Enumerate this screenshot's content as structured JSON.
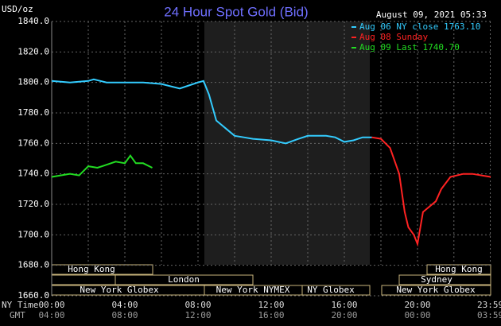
{
  "chart_data": {
    "type": "line",
    "title": "24 Hour Spot Gold (Bid)",
    "y_unit_label": "USD/oz",
    "timestamp": "August 09, 2021 05:33",
    "x_axis_label": "NY Time",
    "x2_axis_label": "GMT",
    "xlim": [
      0,
      24
    ],
    "xticks": [
      {
        "value": 0,
        "label": "00:00"
      },
      {
        "value": 4,
        "label": "04:00"
      },
      {
        "value": 8,
        "label": "08:00"
      },
      {
        "value": 12,
        "label": "12:00"
      },
      {
        "value": 16,
        "label": "16:00"
      },
      {
        "value": 20,
        "label": "20:00"
      },
      {
        "value": 23.98,
        "label": "23:59"
      }
    ],
    "x2tick_labels": [
      "04:00",
      "08:00",
      "12:00",
      "16:00",
      "20:00",
      "00:00",
      "03:59"
    ],
    "ylim": [
      1660,
      1840
    ],
    "yticks": [
      {
        "value": 1840,
        "label": "1840.0"
      },
      {
        "value": 1820,
        "label": "1820.0"
      },
      {
        "value": 1800,
        "label": "1800.0"
      },
      {
        "value": 1780,
        "label": "1780.0"
      },
      {
        "value": 1760,
        "label": "1760.0"
      },
      {
        "value": 1740,
        "label": "1740.0"
      },
      {
        "value": 1720,
        "label": "1720.0"
      },
      {
        "value": 1700,
        "label": "1700.0"
      },
      {
        "value": 1680,
        "label": "1680.0"
      },
      {
        "value": 1660,
        "label": "1660.0"
      }
    ],
    "grid": true,
    "sessions": [
      "Hong Kong",
      "London",
      "New York Globex",
      "New York NYMEX",
      "NY Globex",
      "Hong Kong",
      "Sydney",
      "New York Globex"
    ],
    "series": [
      {
        "name": "Aug 06 NY close 1763.10",
        "color": "#33ccff",
        "x": [
          0,
          1,
          2,
          2.3,
          3,
          4,
          5,
          6,
          7,
          7.5,
          8,
          8.3,
          8.6,
          9,
          9.5,
          10,
          10.5,
          11,
          12,
          12.8,
          13.5,
          14,
          15,
          15.5,
          16,
          16.5,
          17,
          17.5
        ],
        "values": [
          1801,
          1800,
          1801,
          1802,
          1800,
          1800,
          1800,
          1799,
          1796,
          1798,
          1800,
          1801,
          1792,
          1775,
          1770,
          1765,
          1764,
          1763,
          1762,
          1760,
          1763,
          1765,
          1765,
          1764,
          1761,
          1762,
          1764,
          1764
        ]
      },
      {
        "name": "Aug 08 Sunday",
        "color": "#ff2222",
        "x": [
          17.5,
          18,
          18.5,
          19,
          19.3,
          19.5,
          19.8,
          20,
          20.3,
          21,
          21.3,
          21.8,
          22.5,
          23,
          24
        ],
        "values": [
          1764,
          1763,
          1757,
          1740,
          1715,
          1705,
          1700,
          1694,
          1715,
          1722,
          1730,
          1738,
          1740,
          1740,
          1738
        ]
      },
      {
        "name": "Aug 09 Last 1740.70",
        "color": "#22dd22",
        "x": [
          0,
          1,
          1.5,
          2,
          2.5,
          3,
          3.5,
          4,
          4.3,
          4.6,
          5,
          5.5
        ],
        "values": [
          1738,
          1740,
          1739,
          1745,
          1744,
          1746,
          1748,
          1747,
          1752,
          1747,
          1747,
          1744
        ]
      }
    ]
  }
}
